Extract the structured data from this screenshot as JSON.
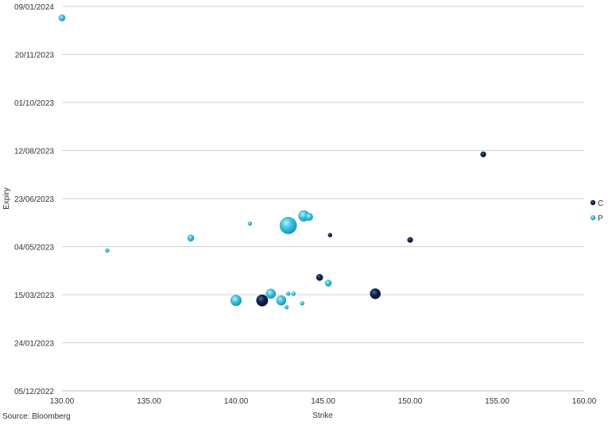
{
  "chart_data": {
    "type": "scatter",
    "subtype": "bubble",
    "xlabel": "Strike",
    "ylabel": "Expiry",
    "xlim": [
      130,
      160
    ],
    "ylim": [
      "2022-12-05",
      "2024-01-09"
    ],
    "x_ticks": [
      "130.00",
      "135.00",
      "140.00",
      "145.00",
      "150.00",
      "155.00",
      "160.00"
    ],
    "y_ticks": [
      "09/01/2024",
      "20/11/2023",
      "01/10/2023",
      "12/08/2023",
      "23/06/2023",
      "04/05/2023",
      "15/03/2023",
      "24/01/2023",
      "05/12/2022"
    ],
    "grid": "horizontal",
    "legend_position": "right",
    "series": [
      {
        "name": "C",
        "color": "#0d2150",
        "points": [
          {
            "x": 154.2,
            "y": "2023-08-08",
            "size": 2
          },
          {
            "x": 150.0,
            "y": "2023-05-11",
            "size": 2
          },
          {
            "x": 145.4,
            "y": "2023-05-16",
            "size": 1
          },
          {
            "x": 144.8,
            "y": "2023-04-02",
            "size": 3
          },
          {
            "x": 148.0,
            "y": "2023-03-16",
            "size": 8
          },
          {
            "x": 141.5,
            "y": "2023-03-09",
            "size": 10
          }
        ]
      },
      {
        "name": "P",
        "color": "#3cc3e0",
        "points": [
          {
            "x": 130.0,
            "y": "2023-12-28",
            "size": 3
          },
          {
            "x": 132.6,
            "y": "2023-04-30",
            "size": 1
          },
          {
            "x": 137.4,
            "y": "2023-05-13",
            "size": 3
          },
          {
            "x": 140.8,
            "y": "2023-05-28",
            "size": 1
          },
          {
            "x": 143.0,
            "y": "2023-05-26",
            "size": 22
          },
          {
            "x": 143.9,
            "y": "2023-06-05",
            "size": 9
          },
          {
            "x": 144.2,
            "y": "2023-06-04",
            "size": 4
          },
          {
            "x": 145.3,
            "y": "2023-03-27",
            "size": 3
          },
          {
            "x": 140.0,
            "y": "2023-03-09",
            "size": 9
          },
          {
            "x": 142.0,
            "y": "2023-03-16",
            "size": 7
          },
          {
            "x": 142.6,
            "y": "2023-03-09",
            "size": 7
          },
          {
            "x": 143.0,
            "y": "2023-03-16",
            "size": 1
          },
          {
            "x": 143.3,
            "y": "2023-03-16",
            "size": 1
          },
          {
            "x": 142.9,
            "y": "2023-03-02",
            "size": 1
          },
          {
            "x": 143.8,
            "y": "2023-03-06",
            "size": 1
          }
        ]
      }
    ]
  },
  "source": "Source: Bloomberg"
}
